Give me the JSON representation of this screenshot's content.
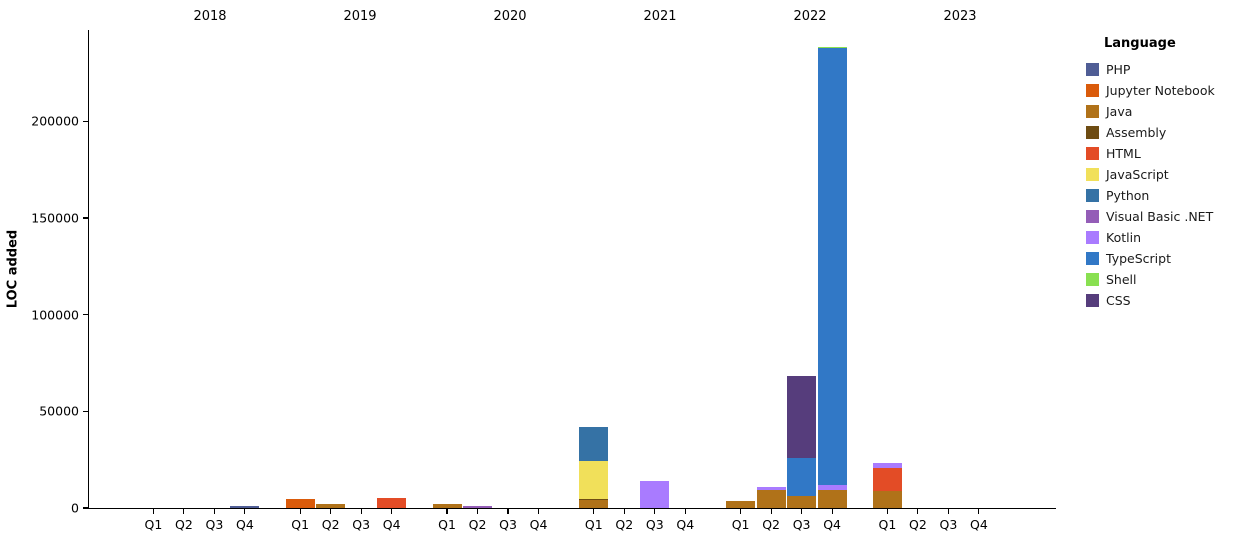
{
  "chart_data": {
    "type": "bar",
    "stacked": true,
    "title": "",
    "xlabel": "",
    "ylabel": "LOC added",
    "ylim": [
      0,
      247000
    ],
    "yticks": [
      0,
      50000,
      100000,
      150000,
      200000
    ],
    "ytick_labels": [
      "0",
      "50000",
      "100000",
      "150000",
      "200000"
    ],
    "grid": false,
    "year_groups": [
      "2018",
      "2019",
      "2020",
      "2021",
      "2022",
      "2023"
    ],
    "quarter_labels": [
      "Q1",
      "Q2",
      "Q3",
      "Q4"
    ],
    "categories": [
      "2018 Q1",
      "2018 Q2",
      "2018 Q3",
      "2018 Q4",
      "2019 Q1",
      "2019 Q2",
      "2019 Q3",
      "2019 Q4",
      "2020 Q1",
      "2020 Q2",
      "2020 Q3",
      "2020 Q4",
      "2021 Q1",
      "2021 Q2",
      "2021 Q3",
      "2021 Q4",
      "2022 Q1",
      "2022 Q2",
      "2022 Q3",
      "2022 Q4",
      "2023 Q1",
      "2023 Q2",
      "2023 Q3",
      "2023 Q4"
    ],
    "legend": {
      "title": "Language",
      "position": "upper right outside"
    },
    "series": [
      {
        "name": "PHP",
        "color": "#4F5D95",
        "values": [
          0,
          0,
          0,
          900,
          0,
          0,
          0,
          0,
          0,
          0,
          0,
          0,
          0,
          0,
          0,
          0,
          0,
          0,
          0,
          0,
          0,
          0,
          0,
          0
        ]
      },
      {
        "name": "Jupyter Notebook",
        "color": "#DA5B0B",
        "values": [
          0,
          0,
          0,
          0,
          4600,
          0,
          0,
          0,
          0,
          0,
          0,
          0,
          0,
          0,
          0,
          0,
          0,
          0,
          0,
          0,
          0,
          0,
          0,
          0
        ]
      },
      {
        "name": "Java",
        "color": "#B07219",
        "values": [
          0,
          0,
          0,
          0,
          0,
          2300,
          0,
          0,
          2300,
          0,
          0,
          0,
          4400,
          0,
          0,
          0,
          3400,
          9200,
          6100,
          9300,
          8700,
          0,
          0,
          0
        ]
      },
      {
        "name": "Assembly",
        "color": "#6E4C13",
        "values": [
          0,
          0,
          0,
          0,
          0,
          0,
          0,
          0,
          0,
          0,
          0,
          0,
          300,
          0,
          0,
          0,
          0,
          0,
          0,
          0,
          0,
          0,
          0,
          0
        ]
      },
      {
        "name": "HTML",
        "color": "#E34C26",
        "values": [
          0,
          0,
          0,
          0,
          0,
          0,
          0,
          5400,
          0,
          0,
          0,
          0,
          0,
          0,
          0,
          0,
          0,
          0,
          0,
          0,
          11800,
          0,
          0,
          0
        ]
      },
      {
        "name": "JavaScript",
        "color": "#F1E05A",
        "values": [
          0,
          0,
          0,
          0,
          0,
          0,
          0,
          0,
          0,
          0,
          0,
          0,
          19800,
          0,
          0,
          0,
          0,
          0,
          0,
          0,
          0,
          0,
          0,
          0
        ]
      },
      {
        "name": "Python",
        "color": "#3572A5",
        "values": [
          0,
          0,
          0,
          0,
          0,
          0,
          0,
          0,
          0,
          0,
          0,
          0,
          17500,
          0,
          0,
          0,
          0,
          0,
          0,
          0,
          0,
          0,
          0,
          0
        ]
      },
      {
        "name": "Visual Basic .NET",
        "color": "#945DB7",
        "values": [
          0,
          0,
          0,
          0,
          0,
          0,
          0,
          0,
          0,
          800,
          0,
          0,
          0,
          0,
          0,
          0,
          0,
          0,
          0,
          0,
          0,
          0,
          0,
          0
        ]
      },
      {
        "name": "Kotlin",
        "color": "#A97BFF",
        "values": [
          0,
          0,
          0,
          0,
          0,
          0,
          0,
          0,
          0,
          0,
          0,
          0,
          0,
          0,
          14000,
          0,
          0,
          1700,
          0,
          2700,
          2600,
          0,
          0,
          0
        ]
      },
      {
        "name": "TypeScript",
        "color": "#3178C6",
        "values": [
          0,
          0,
          0,
          0,
          0,
          0,
          0,
          0,
          0,
          0,
          0,
          0,
          0,
          0,
          0,
          0,
          0,
          0,
          19700,
          226000,
          0,
          0,
          0,
          0
        ]
      },
      {
        "name": "Shell",
        "color": "#89E051",
        "values": [
          0,
          0,
          0,
          0,
          0,
          0,
          0,
          0,
          0,
          0,
          0,
          0,
          0,
          0,
          0,
          0,
          0,
          0,
          0,
          300,
          0,
          0,
          0,
          0
        ]
      },
      {
        "name": "CSS",
        "color": "#563D7C",
        "values": [
          0,
          0,
          0,
          0,
          0,
          0,
          0,
          0,
          0,
          0,
          0,
          0,
          0,
          0,
          0,
          0,
          0,
          0,
          42400,
          0,
          0,
          0,
          0,
          0
        ]
      }
    ]
  }
}
